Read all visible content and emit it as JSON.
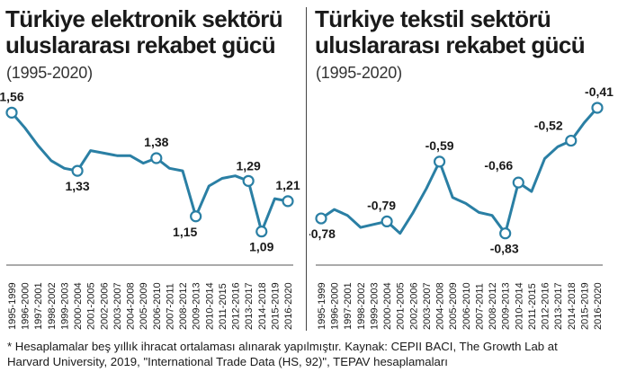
{
  "chart_data": [
    {
      "type": "line",
      "title_lines": [
        "Türkiye elektronik sektörü",
        "uluslararası rekabet gücü"
      ],
      "subtitle": "(1995-2020)",
      "categories": [
        "1995-1999",
        "1996-2000",
        "1997-2001",
        "1998-2002",
        "1999-2003",
        "2000-2004",
        "2001-2005",
        "2002-2006",
        "2003-2007",
        "2004-2008",
        "2005-2009",
        "2006-2010",
        "2007-2011",
        "2008-2012",
        "2009-2013",
        "2010-2014",
        "2011-2015",
        "2012-2016",
        "2013-2017",
        "2014-2018",
        "2015-2019",
        "2016-2020"
      ],
      "values": [
        1.56,
        1.5,
        1.43,
        1.37,
        1.34,
        1.33,
        1.41,
        1.4,
        1.39,
        1.39,
        1.36,
        1.38,
        1.34,
        1.33,
        1.15,
        1.27,
        1.3,
        1.31,
        1.29,
        1.09,
        1.22,
        1.21
      ],
      "ylim": [
        1.0,
        1.65
      ],
      "color": "#2a7fa4",
      "highlighted": [
        {
          "index": 0,
          "label": "1,56"
        },
        {
          "index": 5,
          "label": "1,33"
        },
        {
          "index": 11,
          "label": "1,38"
        },
        {
          "index": 14,
          "label": "1,15"
        },
        {
          "index": 18,
          "label": "1,29"
        },
        {
          "index": 19,
          "label": "1,09"
        },
        {
          "index": 21,
          "label": "1,21"
        }
      ]
    },
    {
      "type": "line",
      "title_lines": [
        "Türkiye tekstil sektörü",
        "uluslararası rekabet gücü"
      ],
      "subtitle": "(1995-2020)",
      "categories": [
        "1995-1999",
        "1996-2000",
        "1997-2001",
        "1998-2002",
        "1999-2003",
        "2000-2004",
        "2001-2005",
        "2002-2006",
        "2003-2007",
        "2004-2008",
        "2005-2009",
        "2006-2010",
        "2007-2011",
        "2008-2012",
        "2009-2013",
        "2010-2014",
        "2011-2015",
        "2012-2016",
        "2013-2017",
        "2014-2018",
        "2015-2019",
        "2016-2020"
      ],
      "values": [
        -0.78,
        -0.75,
        -0.77,
        -0.81,
        -0.8,
        -0.79,
        -0.83,
        -0.76,
        -0.68,
        -0.59,
        -0.71,
        -0.73,
        -0.76,
        -0.77,
        -0.83,
        -0.66,
        -0.69,
        -0.58,
        -0.54,
        -0.52,
        -0.46,
        -0.41
      ],
      "ylim": [
        -0.9,
        -0.35
      ],
      "color": "#2a7fa4",
      "highlighted": [
        {
          "index": 0,
          "label": "-0,78"
        },
        {
          "index": 5,
          "label": "-0,79"
        },
        {
          "index": 9,
          "label": "-0,59"
        },
        {
          "index": 14,
          "label": "-0,83"
        },
        {
          "index": 15,
          "label": "-0,66"
        },
        {
          "index": 19,
          "label": "-0,52"
        },
        {
          "index": 21,
          "label": "-0,41"
        }
      ]
    }
  ],
  "footnote": {
    "line1": "* Hesaplamalar beş yıllık ihracat ortalaması alınarak yapılmıştır. Kaynak: CEPII BACI, The Growth Lab at",
    "line2": "Harvard University, 2019, \"International Trade Data (HS, 92)\", TEPAV hesaplamaları"
  }
}
